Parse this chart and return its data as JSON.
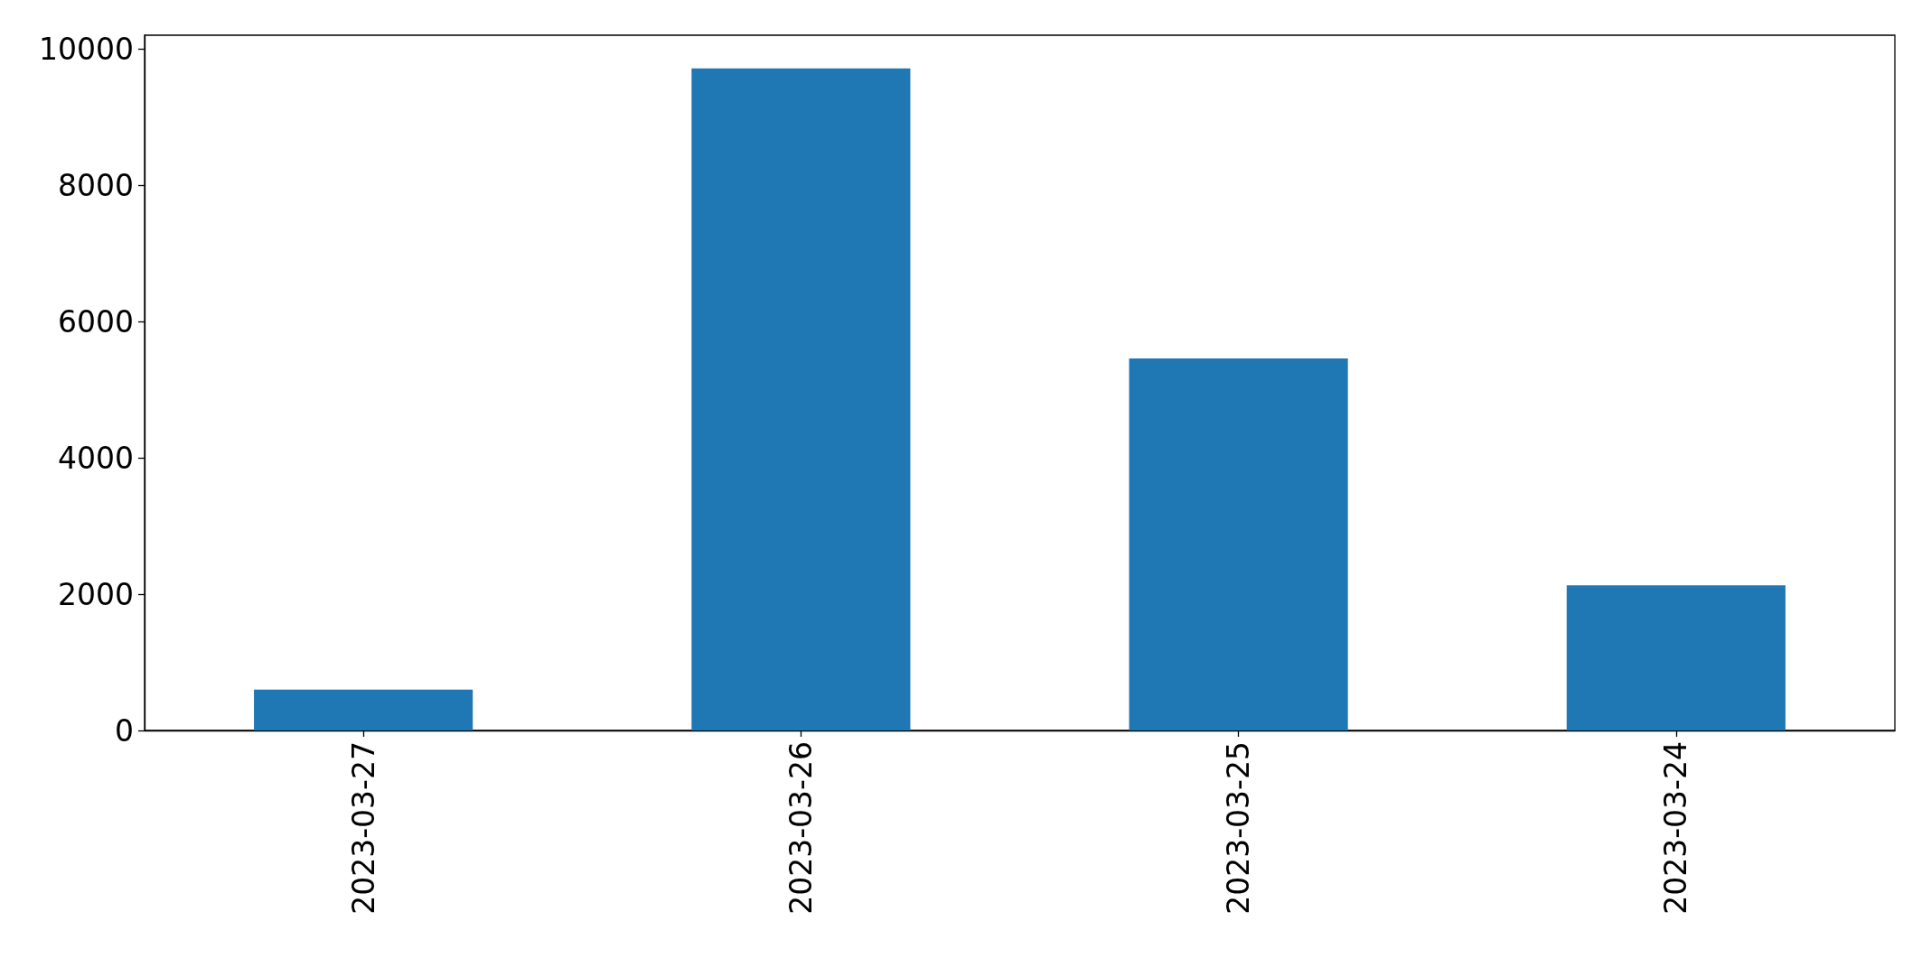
{
  "chart_data": {
    "type": "bar",
    "categories": [
      "2023-03-27",
      "2023-03-26",
      "2023-03-25",
      "2023-03-24"
    ],
    "values": [
      600,
      9720,
      5460,
      2130
    ],
    "color": "#1f77b4",
    "ylim": [
      0,
      10206
    ],
    "yticks": [
      0,
      2000,
      4000,
      6000,
      8000,
      10000
    ]
  }
}
